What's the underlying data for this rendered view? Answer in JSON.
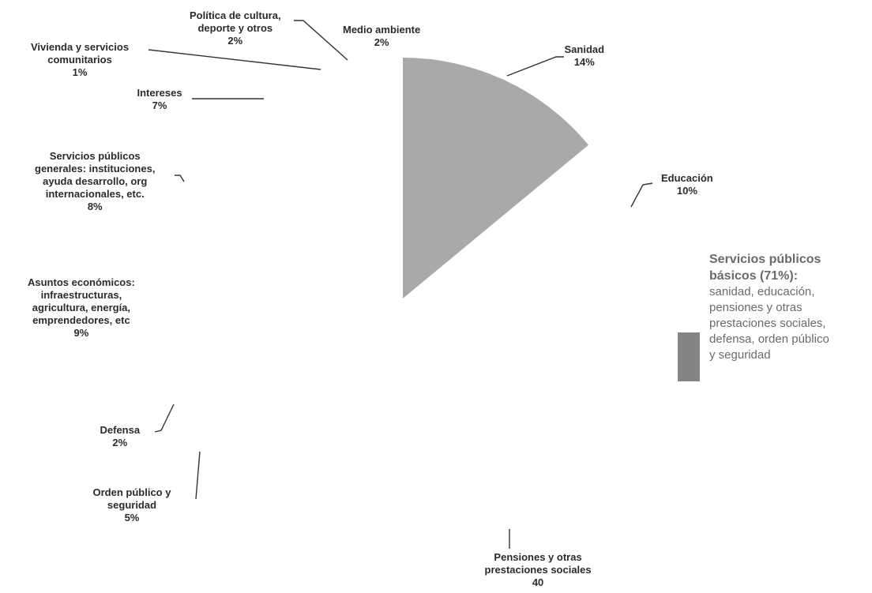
{
  "chart_data": {
    "type": "pie",
    "slices": [
      {
        "label": "Sanidad",
        "value_label": "14%",
        "value": 14,
        "shaded": true,
        "color": "#a9a9a9"
      },
      {
        "label": "Educación",
        "value_label": "10%",
        "value": 10,
        "shaded": false
      },
      {
        "label": "Pensiones y otras\nprestaciones sociales",
        "value_label": "40",
        "value": 40,
        "shaded": false
      },
      {
        "label": "Orden público y\nseguridad",
        "value_label": "5%",
        "value": 5,
        "shaded": false
      },
      {
        "label": "Defensa",
        "value_label": "2%",
        "value": 2,
        "shaded": false
      },
      {
        "label": "Asuntos económicos:\ninfraestructuras,\nagricultura, energía,\nemprendedores, etc",
        "value_label": "9%",
        "value": 9,
        "shaded": false
      },
      {
        "label": "Servicios públicos\ngenerales: instituciones,\nayuda desarrollo, org\ninternacionales, etc.",
        "value_label": "8%",
        "value": 8,
        "shaded": false
      },
      {
        "label": "Intereses",
        "value_label": "7%",
        "value": 7,
        "shaded": false
      },
      {
        "label": "Vivienda y servicios\ncomunitarios",
        "value_label": "1%",
        "value": 1,
        "shaded": false
      },
      {
        "label": "Política de cultura,\ndeporte y otros",
        "value_label": "2%",
        "value": 2,
        "shaded": false
      },
      {
        "label": "Medio ambiente",
        "value_label": "2%",
        "value": 2,
        "shaded": false
      }
    ],
    "legend": {
      "placement": "right",
      "title": "Servicios públicos\nbásicos (71%):",
      "description": "sanidad, educación,\npensiones y otras\nprestaciones sociales,\ndefensa, orden público\ny seguridad",
      "color": "#858585"
    }
  }
}
